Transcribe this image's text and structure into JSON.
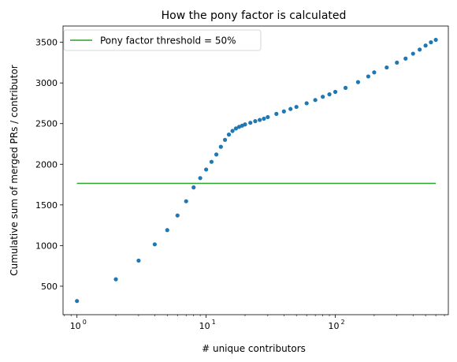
{
  "chart_data": {
    "type": "scatter",
    "title": "How the pony factor is calculated",
    "xlabel": "# unique contributors",
    "ylabel": "Cumulative sum of merged PRs / contributor",
    "x_scale": "log",
    "xlim": [
      0.78,
      750
    ],
    "ylim": [
      150,
      3700
    ],
    "x_ticks": [
      {
        "value": 1,
        "base": "10",
        "exp": "0"
      },
      {
        "value": 10,
        "base": "10",
        "exp": "1"
      },
      {
        "value": 100,
        "base": "10",
        "exp": "2"
      }
    ],
    "y_ticks": [
      500,
      1000,
      1500,
      2000,
      2500,
      3000,
      3500
    ],
    "grid": false,
    "legend_position": "top-left",
    "legend": [
      {
        "label": "Pony factor threshold = 50%",
        "type": "line",
        "color": "#2ca02c"
      }
    ],
    "threshold": {
      "value": 1765,
      "x_range": [
        1,
        600
      ],
      "color": "#2ca02c"
    },
    "series": [
      {
        "marker_color": "#1f77b4",
        "points": [
          [
            1,
            318
          ],
          [
            2,
            585
          ],
          [
            3,
            815
          ],
          [
            4,
            1015
          ],
          [
            5,
            1190
          ],
          [
            6,
            1370
          ],
          [
            7,
            1545
          ],
          [
            8,
            1715
          ],
          [
            9,
            1830
          ],
          [
            10,
            1935
          ],
          [
            11,
            2030
          ],
          [
            12,
            2120
          ],
          [
            13,
            2215
          ],
          [
            14,
            2300
          ],
          [
            15,
            2365
          ],
          [
            16,
            2410
          ],
          [
            17,
            2440
          ],
          [
            18,
            2460
          ],
          [
            19,
            2475
          ],
          [
            20,
            2490
          ],
          [
            22,
            2510
          ],
          [
            24,
            2530
          ],
          [
            26,
            2545
          ],
          [
            28,
            2560
          ],
          [
            30,
            2580
          ],
          [
            35,
            2620
          ],
          [
            40,
            2650
          ],
          [
            45,
            2680
          ],
          [
            50,
            2705
          ],
          [
            60,
            2750
          ],
          [
            70,
            2790
          ],
          [
            80,
            2830
          ],
          [
            90,
            2860
          ],
          [
            100,
            2890
          ],
          [
            120,
            2940
          ],
          [
            150,
            3010
          ],
          [
            180,
            3080
          ],
          [
            200,
            3130
          ],
          [
            250,
            3190
          ],
          [
            300,
            3250
          ],
          [
            350,
            3300
          ],
          [
            400,
            3360
          ],
          [
            450,
            3410
          ],
          [
            500,
            3460
          ],
          [
            550,
            3500
          ],
          [
            600,
            3530
          ]
        ]
      }
    ]
  }
}
